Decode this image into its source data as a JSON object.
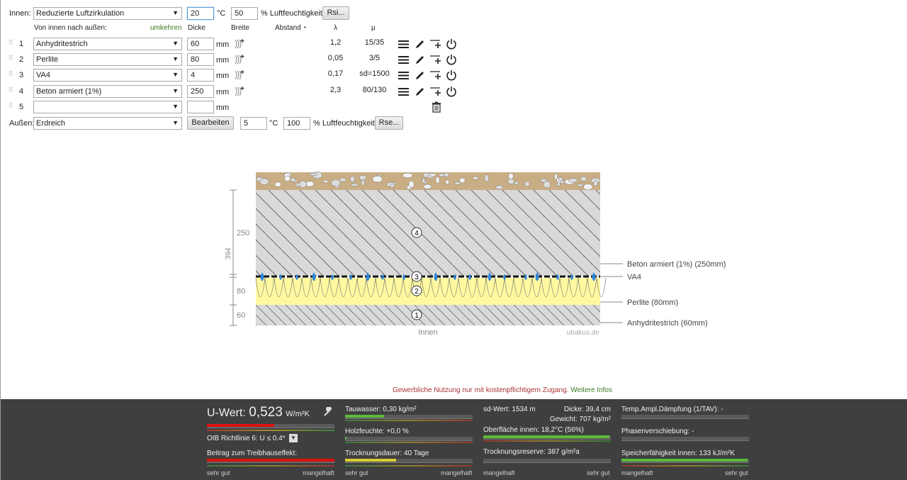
{
  "inside": {
    "label": "Innen:",
    "climate": "Reduzierte Luftzirkulation",
    "temp": "20",
    "temp_unit": "°C",
    "humidity": "50",
    "humidity_unit": "% Luftfeuchtigkeit",
    "rsi_button": "Rsi..."
  },
  "header": {
    "direction": "Von innen nach außen:",
    "reverse_link": "umkehren",
    "col_thickness": "Dicke",
    "col_width": "Breite",
    "col_spacing": "Abstand",
    "col_spacing_arrow": "•",
    "col_lambda": "λ",
    "col_mu": "μ"
  },
  "layers": [
    {
      "num": "1",
      "material": "Anhydritestrich",
      "thickness": "60",
      "unit": "mm",
      "lambda": "1,2",
      "mu": "15/35"
    },
    {
      "num": "2",
      "material": "Perlite",
      "thickness": "80",
      "unit": "mm",
      "lambda": "0,05",
      "mu": "3/5"
    },
    {
      "num": "3",
      "material": "VA4",
      "thickness": "4",
      "unit": "mm",
      "lambda": "0,17",
      "mu": "sd=1500"
    },
    {
      "num": "4",
      "material": "Beton armiert (1%)",
      "thickness": "250",
      "unit": "mm",
      "lambda": "2,3",
      "mu": "80/130"
    },
    {
      "num": "5",
      "material": "",
      "thickness": "",
      "unit": "mm",
      "lambda": "",
      "mu": ""
    }
  ],
  "outside": {
    "label": "Außen:",
    "climate": "Erdreich",
    "edit_button": "Bearbeiten",
    "temp": "5",
    "temp_unit": "°C",
    "humidity": "100",
    "humidity_unit": "% Luftfeuchtigkeit",
    "rse_button": "Rse..."
  },
  "diagram": {
    "dim_total": "394",
    "dim_4": "250",
    "dim_2": "80",
    "dim_1": "60",
    "label_4": "Beton armiert (1%) (250mm)",
    "label_3": "VA4",
    "label_2": "Perlite (80mm)",
    "label_1": "Anhydritestrich (60mm)",
    "circle_1": "1",
    "circle_2": "2",
    "circle_3": "3",
    "circle_4": "4",
    "inside_label": "Innen",
    "watermark": "ubakus.de"
  },
  "notice": {
    "text": "Gewerbliche Nutzung nur mit kostenpflichtigem Zugang.",
    "link": "Weitere Infos"
  },
  "results": {
    "u_label": "U-Wert:",
    "u_value": "0,523",
    "u_unit": "W/m²K",
    "oib": "OIB Richtlinie 6: U ≤ 0.4*",
    "greenhouse": "Beitrag zum Treibhauseffekt:",
    "scale_good": "sehr gut",
    "scale_bad": "mangelhaft",
    "condensate": "Tauwasser: 0,30 kg/m²",
    "wood_moisture": "Holzfeuchte: +0,0 %",
    "drying_time": "Trocknungsdauer: 40 Tage",
    "sd_value": "sd-Wert: 1534 m",
    "thickness": "Dicke: 39,4 cm",
    "weight": "Gewicht: 707 kg/m²",
    "surface_temp": "Oberfläche innen: 18,2°C (56%)",
    "drying_reserve": "Trocknungsreserve: 387 g/m²a",
    "scale_bad_left": "mangelhaft",
    "scale_good_right": "sehr gut",
    "temp_damping": "Temp.Ampl.Dämpfung (1/TAV): -",
    "phase_shift": "Phasenverschiebung: -",
    "heat_storage": "Speicherfähigkeit innen: 133 kJ/m²K"
  },
  "colors": {
    "accent_green": "#3b7a1f",
    "notice_red": "#a33",
    "bar_red": "#e01010",
    "bar_yellow": "#d8cc30",
    "bar_green": "#5dbb3a",
    "panel_bg": "#3f3f3f"
  }
}
